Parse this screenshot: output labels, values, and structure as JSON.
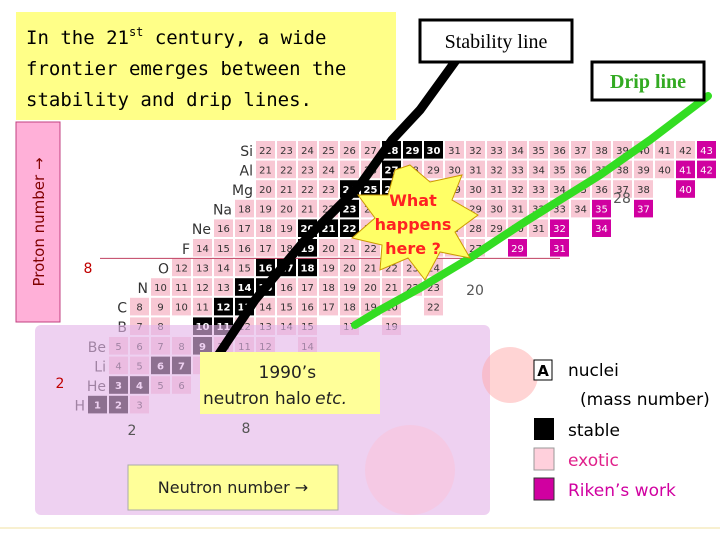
{
  "title": {
    "line1_before": "In the 21",
    "line1_sup": "st",
    "line1_after": " century, a wide",
    "line2": "frontier emerges between the",
    "line3": "stability and drip lines."
  },
  "stability_label": "Stability line",
  "drip_label": "Drip line",
  "proton_axis": "Proton number →",
  "neutron_axis": "Neutron number →",
  "question": [
    "What",
    "happens",
    "here ?"
  ],
  "halo": {
    "line1": "1990’s",
    "line2": "neutron halo",
    "etc": "etc."
  },
  "magic_numbers": {
    "proton_8": "8",
    "proton_2": "2",
    "neutron_20": "20",
    "neutron_28": "28",
    "neutron_8": "8",
    "neutron_2": "2"
  },
  "legend": {
    "box": "A",
    "nuclei": "nuclei",
    "mass": "(mass number)",
    "stable": "stable",
    "exotic": "exotic",
    "riken": "Riken’s work"
  },
  "rows": [
    {
      "symbol": "Si",
      "masses": [
        22,
        23,
        24,
        25,
        26,
        27,
        28,
        29,
        30,
        31,
        32,
        33,
        34,
        35,
        36,
        37,
        38,
        39,
        40,
        41,
        42,
        43
      ],
      "stable": [
        28,
        29,
        30
      ],
      "riken": [
        43
      ]
    },
    {
      "symbol": "Al",
      "masses": [
        21,
        22,
        23,
        24,
        25,
        26,
        27,
        28,
        29,
        30,
        31,
        32,
        33,
        34,
        35,
        36,
        37,
        38,
        39,
        40,
        41,
        42
      ],
      "stable": [
        27
      ],
      "riken": [
        41,
        42
      ]
    },
    {
      "symbol": "Mg",
      "masses": [
        20,
        21,
        22,
        23,
        24,
        25,
        26,
        27,
        28,
        29,
        30,
        31,
        32,
        33,
        34,
        35,
        36,
        37,
        38,
        40
      ],
      "stable": [
        24,
        25,
        26
      ],
      "riken": [
        40
      ]
    },
    {
      "symbol": "Na",
      "masses": [
        18,
        19,
        20,
        21,
        22,
        23,
        24,
        25,
        26,
        27,
        28,
        29,
        30,
        31,
        32,
        33,
        34,
        35,
        37
      ],
      "stable": [
        23
      ],
      "riken": [
        35,
        37
      ]
    },
    {
      "symbol": "Ne",
      "masses": [
        16,
        17,
        18,
        19,
        20,
        21,
        22,
        23,
        24,
        25,
        26,
        27,
        28,
        29,
        30,
        31,
        32,
        34
      ],
      "stable": [
        20,
        21,
        22
      ],
      "riken": [
        32,
        34
      ]
    },
    {
      "symbol": "F",
      "masses": [
        14,
        15,
        16,
        17,
        18,
        19,
        20,
        21,
        22,
        23,
        24,
        25,
        26,
        27,
        29,
        31
      ],
      "stable": [
        19
      ],
      "riken": [
        29,
        31
      ]
    },
    {
      "symbol": "O",
      "masses": [
        12,
        13,
        14,
        15,
        16,
        17,
        18,
        19,
        20,
        21,
        22,
        23,
        24
      ],
      "stable": [
        16,
        17,
        18
      ],
      "riken": []
    },
    {
      "symbol": "N",
      "masses": [
        10,
        11,
        12,
        13,
        14,
        15,
        16,
        17,
        18,
        19,
        20,
        21,
        22,
        23
      ],
      "stable": [
        14,
        15
      ],
      "riken": []
    },
    {
      "symbol": "C",
      "masses": [
        8,
        9,
        10,
        11,
        12,
        13,
        14,
        15,
        16,
        17,
        18,
        19,
        20,
        22
      ],
      "stable": [
        12,
        13
      ],
      "riken": []
    },
    {
      "symbol": "B",
      "masses": [
        7,
        8,
        10,
        11,
        12,
        13,
        14,
        15,
        17,
        19
      ],
      "stable": [
        10,
        11
      ],
      "riken": []
    },
    {
      "symbol": "Be",
      "masses": [
        5,
        6,
        7,
        8,
        9,
        10,
        11,
        12,
        14
      ],
      "stable": [
        9
      ],
      "riken": []
    },
    {
      "symbol": "Li",
      "masses": [
        4,
        5,
        6,
        7,
        8,
        9,
        11
      ],
      "stable": [
        6,
        7
      ],
      "riken": []
    },
    {
      "symbol": "He",
      "masses": [
        3,
        4,
        5,
        6,
        8,
        10
      ],
      "stable": [
        3,
        4
      ],
      "riken": []
    },
    {
      "symbol": "H",
      "masses": [
        1,
        2,
        3
      ],
      "stable": [
        1,
        2
      ],
      "riken": []
    }
  ]
}
